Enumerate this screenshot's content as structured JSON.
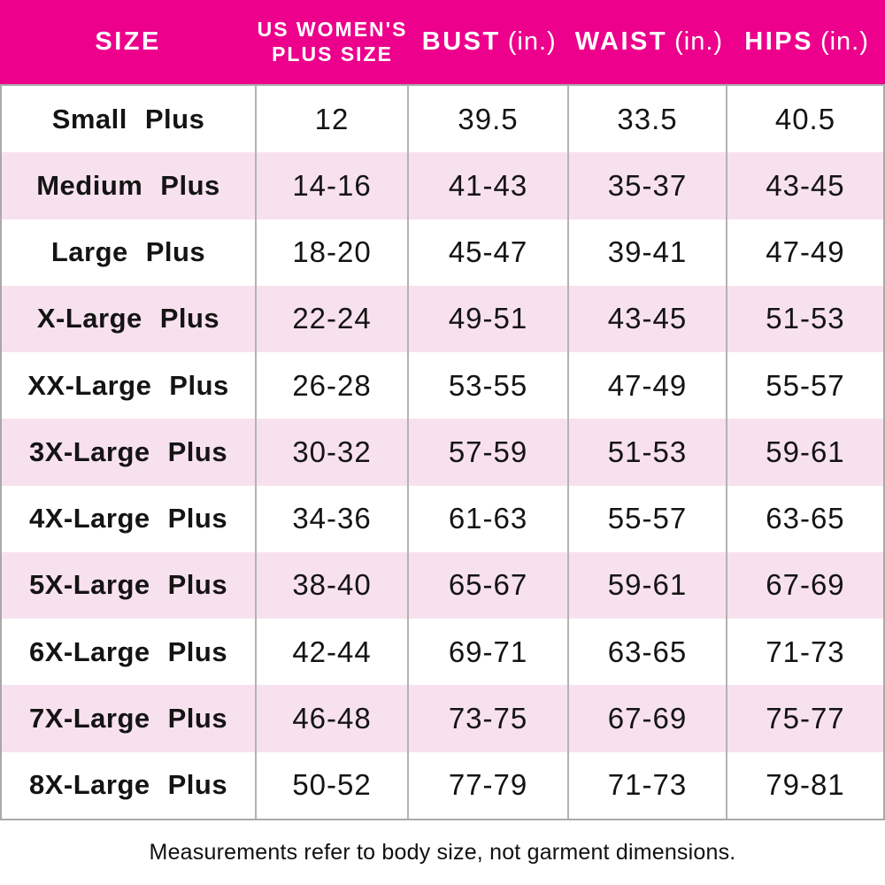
{
  "table": {
    "columns": [
      {
        "label": "SIZE"
      },
      {
        "label_line1": "US WOMEN'S",
        "label_line2": "PLUS SIZE"
      },
      {
        "label": "BUST",
        "unit": "(in.)"
      },
      {
        "label": "WAIST",
        "unit": "(in.)"
      },
      {
        "label": "HIPS",
        "unit": "(in.)"
      }
    ],
    "rows": [
      {
        "size": "Small Plus",
        "us_size": "12",
        "bust": "39.5",
        "waist": "33.5",
        "hips": "40.5"
      },
      {
        "size": "Medium Plus",
        "us_size": "14-16",
        "bust": "41-43",
        "waist": "35-37",
        "hips": "43-45"
      },
      {
        "size": "Large Plus",
        "us_size": "18-20",
        "bust": "45-47",
        "waist": "39-41",
        "hips": "47-49"
      },
      {
        "size": "X-Large Plus",
        "us_size": "22-24",
        "bust": "49-51",
        "waist": "43-45",
        "hips": "51-53"
      },
      {
        "size": "XX-Large Plus",
        "us_size": "26-28",
        "bust": "53-55",
        "waist": "47-49",
        "hips": "55-57"
      },
      {
        "size": "3X-Large Plus",
        "us_size": "30-32",
        "bust": "57-59",
        "waist": "51-53",
        "hips": "59-61"
      },
      {
        "size": "4X-Large Plus",
        "us_size": "34-36",
        "bust": "61-63",
        "waist": "55-57",
        "hips": "63-65"
      },
      {
        "size": "5X-Large Plus",
        "us_size": "38-40",
        "bust": "65-67",
        "waist": "59-61",
        "hips": "67-69"
      },
      {
        "size": "6X-Large Plus",
        "us_size": "42-44",
        "bust": "69-71",
        "waist": "63-65",
        "hips": "71-73"
      },
      {
        "size": "7X-Large Plus",
        "us_size": "46-48",
        "bust": "73-75",
        "waist": "67-69",
        "hips": "75-77"
      },
      {
        "size": "8X-Large Plus",
        "us_size": "50-52",
        "bust": "77-79",
        "waist": "71-73",
        "hips": "79-81"
      }
    ]
  },
  "footer": {
    "note": "Measurements refer to body size, not garment dimensions."
  },
  "colors": {
    "header_bg": "#EC008C",
    "alt_row_bg": "#F8E1EE",
    "border": "#A9A9A9",
    "header_text": "#FFFFFF",
    "body_text": "#141414"
  }
}
